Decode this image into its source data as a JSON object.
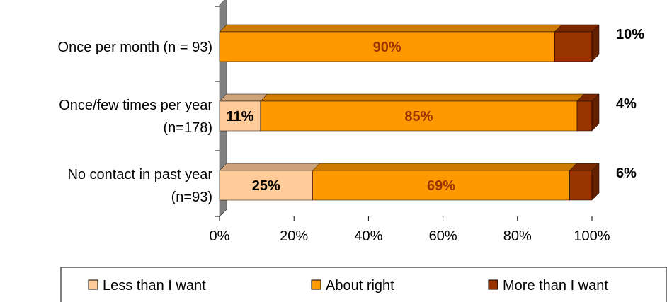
{
  "chart_data": {
    "type": "bar",
    "orientation": "horizontal",
    "stacked": true,
    "percent": true,
    "categories": [
      [
        "Once per month (n = 93)"
      ],
      [
        "Once/few times per year",
        "(n=178)"
      ],
      [
        "No contact in past year",
        "(n=93)"
      ]
    ],
    "series": [
      {
        "name": "Less than I want",
        "color": "#FFCC99",
        "values": [
          0,
          11,
          25
        ],
        "labels": [
          "",
          "11%",
          "25%"
        ]
      },
      {
        "name": "About right",
        "color": "#FF9900",
        "values": [
          90,
          85,
          69
        ],
        "labels": [
          "90%",
          "85%",
          "69%"
        ]
      },
      {
        "name": "More than I want",
        "color": "#993300",
        "values": [
          10,
          4,
          6
        ],
        "labels": [
          "10%",
          "4%",
          "6%"
        ]
      }
    ],
    "xlim": [
      0,
      100
    ],
    "x_ticks": [
      "0%",
      "20%",
      "40%",
      "60%",
      "80%",
      "100%"
    ],
    "legend_position": "bottom",
    "style": "3d",
    "grid": false
  }
}
